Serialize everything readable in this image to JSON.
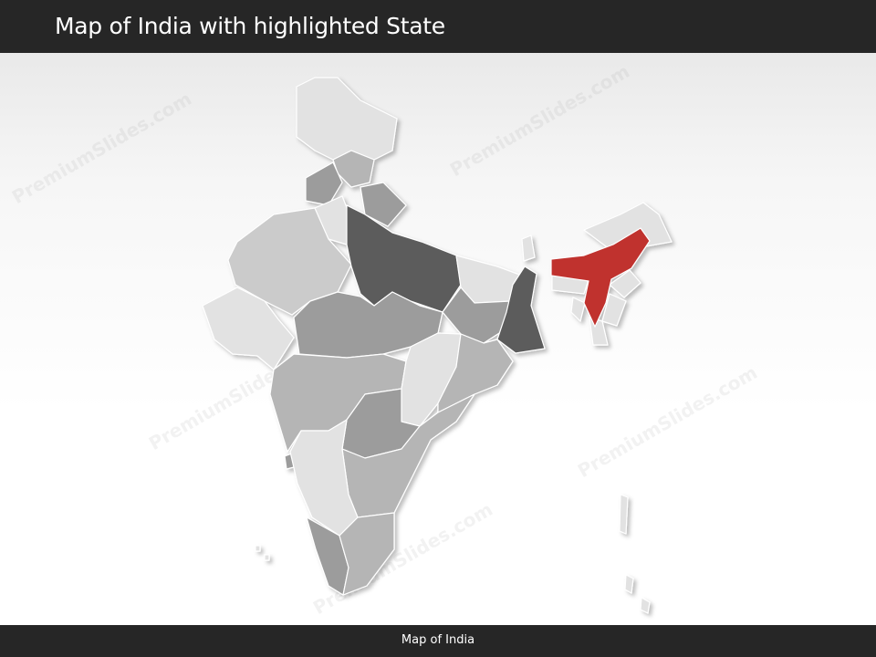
{
  "header": {
    "title": "Map of India with highlighted State"
  },
  "footer": {
    "label": "Map of India"
  },
  "watermark": "PremiumSlides.com",
  "map": {
    "highlighted_region": "Assam",
    "colors": {
      "highlight": "#c0302f",
      "light": "#e2e2e2",
      "medium_light": "#cbcbcb",
      "medium": "#b5b5b5",
      "medium_dark": "#9c9c9c",
      "dark": "#5c5c5c"
    }
  }
}
